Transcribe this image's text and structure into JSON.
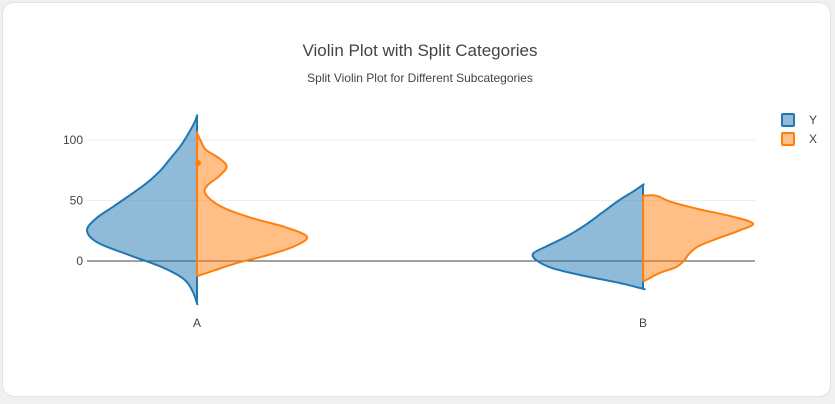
{
  "chart_data": {
    "type": "violin",
    "title": "Violin Plot with Split Categories",
    "subtitle": "Split Violin Plot for Different Subcategories",
    "xlabel": "",
    "ylabel": "",
    "categories": [
      "A",
      "B"
    ],
    "ylim": [
      -40,
      120
    ],
    "yticks": [
      0,
      50,
      100
    ],
    "grid": true,
    "legend_position": "top-right",
    "series": [
      {
        "name": "Y",
        "side": "negative",
        "color": "#1f77b4",
        "violins": [
          {
            "category": "A",
            "y_min": -35,
            "y_max": 120,
            "density": [
              [
                -35,
                0.0
              ],
              [
                -25,
                0.04
              ],
              [
                -15,
                0.12
              ],
              [
                -5,
                0.32
              ],
              [
                5,
                0.62
              ],
              [
                15,
                0.9
              ],
              [
                25,
                1.0
              ],
              [
                35,
                0.92
              ],
              [
                45,
                0.76
              ],
              [
                55,
                0.6
              ],
              [
                65,
                0.45
              ],
              [
                75,
                0.33
              ],
              [
                85,
                0.24
              ],
              [
                95,
                0.15
              ],
              [
                105,
                0.08
              ],
              [
                115,
                0.02
              ],
              [
                120,
                0.0
              ]
            ]
          },
          {
            "category": "B",
            "y_min": -23,
            "y_max": 63,
            "density": [
              [
                -23,
                0.0
              ],
              [
                -18,
                0.22
              ],
              [
                -12,
                0.55
              ],
              [
                -6,
                0.82
              ],
              [
                0,
                0.96
              ],
              [
                6,
                1.0
              ],
              [
                12,
                0.88
              ],
              [
                20,
                0.7
              ],
              [
                30,
                0.52
              ],
              [
                40,
                0.37
              ],
              [
                50,
                0.22
              ],
              [
                58,
                0.08
              ],
              [
                63,
                0.0
              ]
            ]
          }
        ]
      },
      {
        "name": "X",
        "side": "positive",
        "color": "#ff7f0e",
        "violins": [
          {
            "category": "A",
            "y_min": -12,
            "y_max": 106,
            "density": [
              [
                -12,
                0.02
              ],
              [
                -8,
                0.15
              ],
              [
                -2,
                0.35
              ],
              [
                5,
                0.65
              ],
              [
                12,
                0.88
              ],
              [
                20,
                1.0
              ],
              [
                28,
                0.8
              ],
              [
                36,
                0.48
              ],
              [
                45,
                0.22
              ],
              [
                55,
                0.08
              ],
              [
                62,
                0.09
              ],
              [
                70,
                0.2
              ],
              [
                78,
                0.27
              ],
              [
                85,
                0.2
              ],
              [
                92,
                0.08
              ],
              [
                100,
                0.03
              ],
              [
                106,
                0.0
              ]
            ]
          },
          {
            "category": "B",
            "y_min": -16,
            "y_max": 54,
            "density": [
              [
                -16,
                0.02
              ],
              [
                -10,
                0.15
              ],
              [
                -5,
                0.3
              ],
              [
                0,
                0.37
              ],
              [
                6,
                0.42
              ],
              [
                12,
                0.5
              ],
              [
                18,
                0.66
              ],
              [
                25,
                0.87
              ],
              [
                31,
                1.0
              ],
              [
                37,
                0.8
              ],
              [
                43,
                0.5
              ],
              [
                49,
                0.25
              ],
              [
                54,
                0.12
              ]
            ]
          }
        ]
      }
    ],
    "outliers": [
      {
        "series": "X",
        "category": "A",
        "y": 81
      }
    ]
  }
}
